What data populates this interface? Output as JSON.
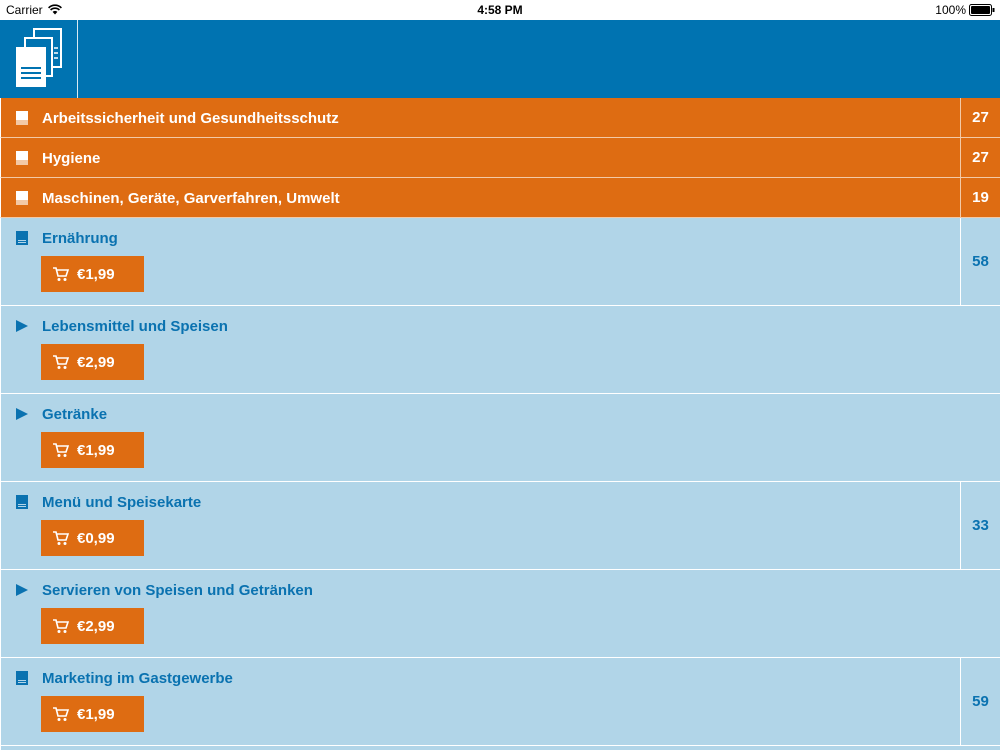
{
  "status_bar": {
    "carrier": "Carrier",
    "time": "4:58 PM",
    "battery": "100%"
  },
  "header": {
    "icon": "documents-icon",
    "color": "#0073b1"
  },
  "colors": {
    "orange": "#de6c12",
    "light_blue": "#b1d5e8",
    "text_blue": "#0a72b0"
  },
  "rows": [
    {
      "type": "owned",
      "icon": "document-icon",
      "label": "Arbeitssicherheit und Gesundheitsschutz",
      "count": "27"
    },
    {
      "type": "owned",
      "icon": "document-icon",
      "label": "Hygiene",
      "count": "27"
    },
    {
      "type": "owned",
      "icon": "document-icon",
      "label": "Maschinen, Geräte, Garverfahren, Umwelt",
      "count": "19"
    },
    {
      "type": "purchase",
      "icon": "document-icon",
      "label": "Ernährung",
      "price": "€1,99",
      "count": "58"
    },
    {
      "type": "purchase",
      "icon": "play-icon",
      "label": "Lebensmittel und Speisen",
      "price": "€2,99"
    },
    {
      "type": "purchase",
      "icon": "play-icon",
      "label": "Getränke",
      "price": "€1,99"
    },
    {
      "type": "purchase",
      "icon": "document-icon",
      "label": "Menü und Speisekarte",
      "price": "€0,99",
      "count": "33"
    },
    {
      "type": "purchase",
      "icon": "play-icon",
      "label": "Servieren von Speisen und Getränken",
      "price": "€2,99"
    },
    {
      "type": "purchase",
      "icon": "document-icon",
      "label": "Marketing im Gastgewerbe",
      "price": "€1,99",
      "count": "59"
    }
  ]
}
